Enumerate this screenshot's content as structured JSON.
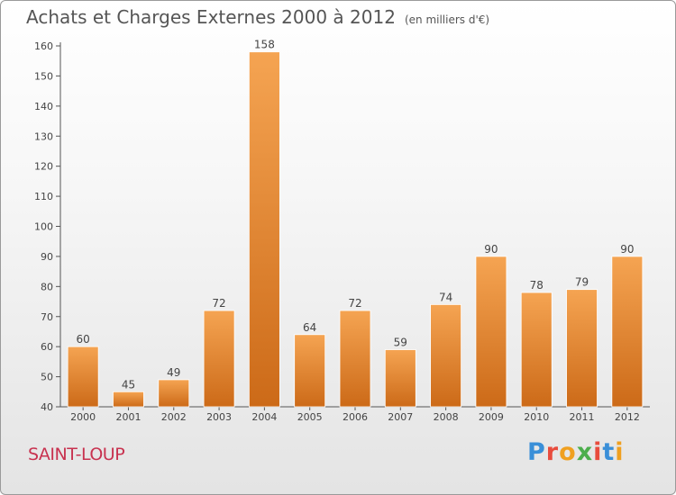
{
  "title": "Achats et Charges Externes 2000 à 2012",
  "unit_note": "(en milliers d'€)",
  "place_label": "SAINT-LOUP",
  "logo_text": "Proxiti",
  "colors": {
    "bar_light": "#f5a452",
    "bar_dark": "#cc6a18",
    "place": "#c8324f",
    "logo": [
      "#3a8fd8",
      "#e84c3d",
      "#f0a020",
      "#4cae4c",
      "#e84c3d",
      "#3a8fd8",
      "#f0a020"
    ]
  },
  "chart_data": {
    "type": "bar",
    "title": "Achats et Charges Externes 2000 à 2012",
    "subtitle": "(en milliers d'€)",
    "categories": [
      "2000",
      "2001",
      "2002",
      "2003",
      "2004",
      "2005",
      "2006",
      "2007",
      "2008",
      "2009",
      "2010",
      "2011",
      "2012"
    ],
    "values": [
      60,
      45,
      49,
      72,
      158,
      64,
      72,
      59,
      74,
      90,
      78,
      79,
      90
    ],
    "ylim": [
      40,
      160
    ],
    "yticks": [
      40,
      50,
      60,
      70,
      80,
      90,
      100,
      110,
      120,
      130,
      140,
      150,
      160
    ],
    "grid": false,
    "data_labels": true
  }
}
